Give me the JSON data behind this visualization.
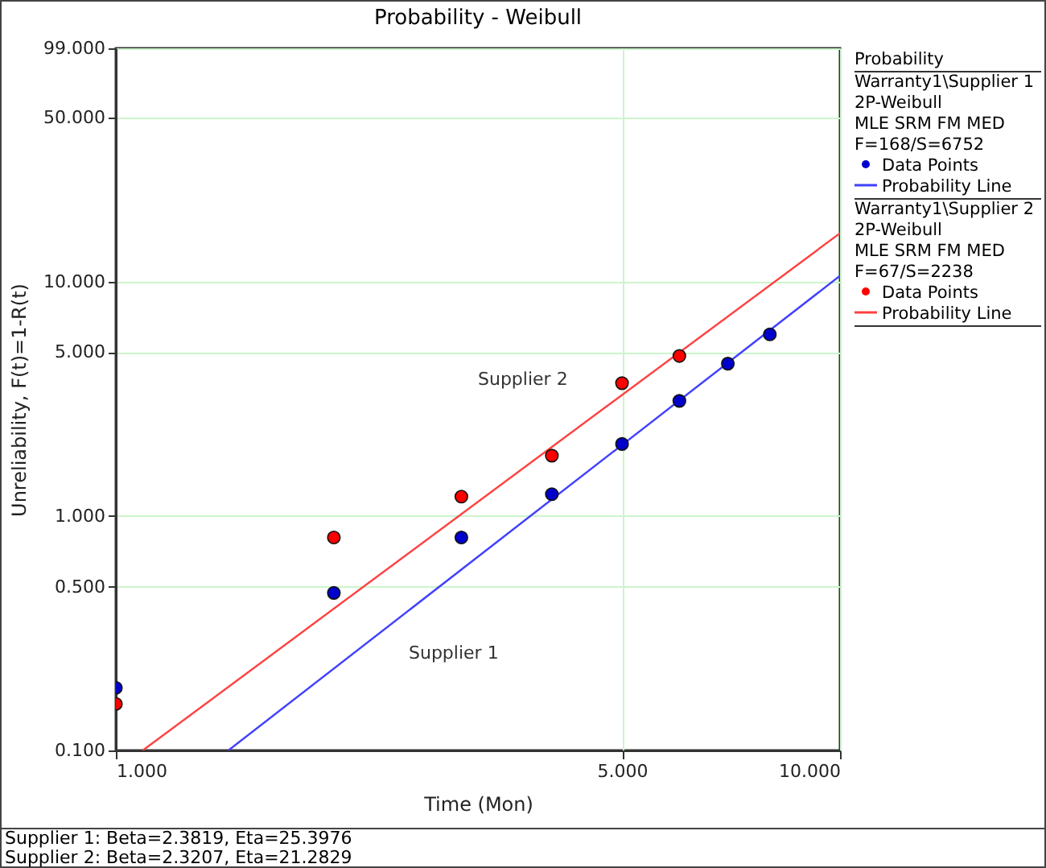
{
  "chart_data": {
    "type": "scatter",
    "title": "Probability - Weibull",
    "xlabel": "Time (Mon)",
    "ylabel": "Unreliability, F(t)=1-R(t)",
    "legend_title": "Probability",
    "log": "xy",
    "grid": true,
    "legend": "right",
    "xlim": [
      1,
      10
    ],
    "xticks": [
      {
        "value": 1,
        "label": "1.000"
      },
      {
        "value": 5,
        "label": "5.000"
      },
      {
        "value": 10,
        "label": "10.000"
      }
    ],
    "ylim": [
      0.1,
      99
    ],
    "yticks": [
      {
        "value": 0.1,
        "label": "0.100"
      },
      {
        "value": 0.5,
        "label": "0.500"
      },
      {
        "value": 1,
        "label": "1.000"
      },
      {
        "value": 5,
        "label": "5.000"
      },
      {
        "value": 10,
        "label": "10.000"
      },
      {
        "value": 50,
        "label": "50.000"
      },
      {
        "value": 99,
        "label": "99.000"
      }
    ],
    "series": [
      {
        "name": "Data Points",
        "marker": "circle",
        "color": "#0000cc",
        "x": [
          1,
          2,
          3,
          4,
          5,
          6,
          7,
          8
        ],
        "values": [
          0.185,
          0.47,
          0.81,
          1.24,
          2.03,
          3.1,
          4.47,
          5.96
        ]
      },
      {
        "name": "Probability Line",
        "type": "line",
        "color": "#4040ff",
        "x": [
          1.43,
          10
        ],
        "values": [
          0.1,
          10.6
        ]
      },
      {
        "name": "Data Points",
        "marker": "circle",
        "color": "#ff0000",
        "x": [
          1,
          2,
          3,
          4,
          5,
          6
        ],
        "values": [
          0.158,
          0.81,
          1.21,
          1.81,
          3.69,
          4.82
        ]
      },
      {
        "name": "Probability Line",
        "type": "line",
        "color": "#ff4040",
        "x": [
          1.089,
          10
        ],
        "values": [
          0.1,
          16.1
        ]
      }
    ],
    "annotations": [
      "Supplier 2",
      "Supplier 1",
      "Warranty1\\Supplier 1",
      "2P-Weibull",
      "MLE SRM FM MED",
      "F=168/S=6752",
      "Warranty1\\Supplier 2",
      "2P-Weibull",
      "MLE SRM FM MED",
      "F=67/S=2238",
      "Supplier 1: Beta=2.3819, Eta=25.3976",
      "Supplier 2: Beta=2.3207, Eta=21.2829"
    ]
  }
}
